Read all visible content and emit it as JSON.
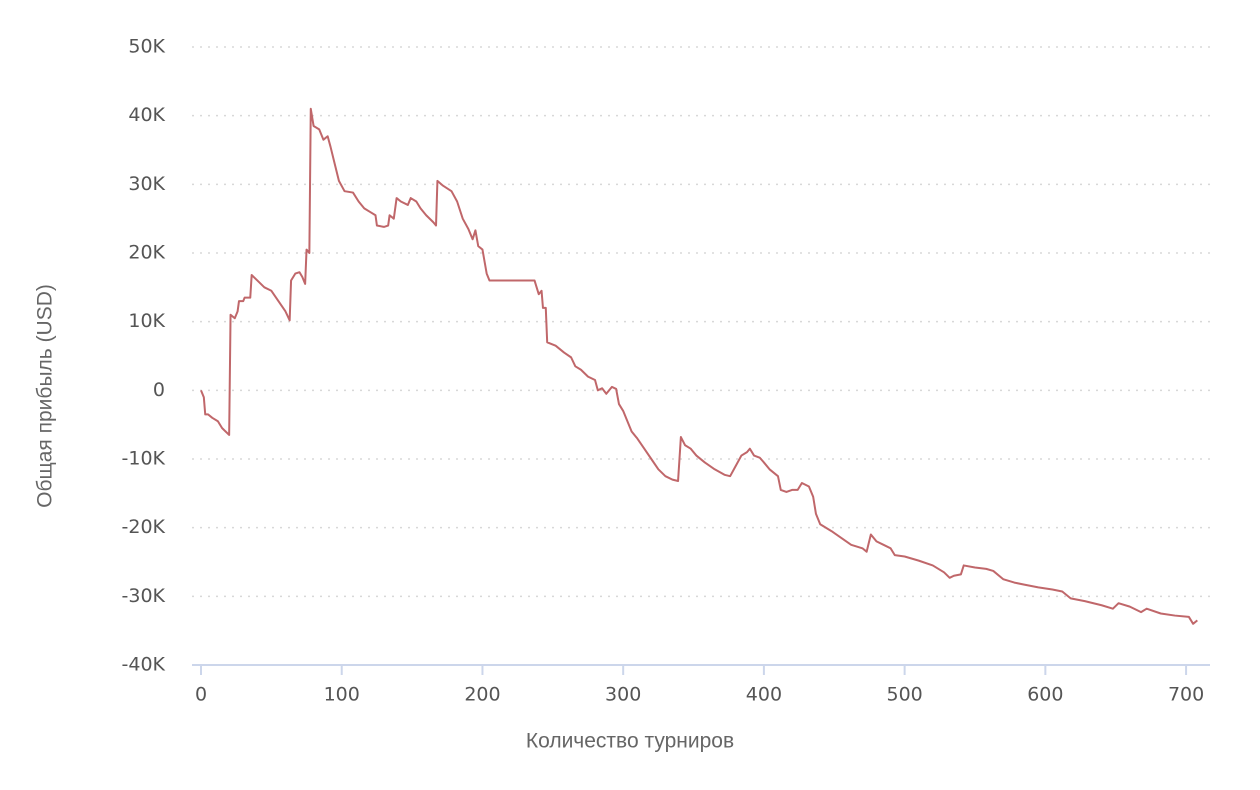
{
  "chart_data": {
    "type": "line",
    "xlabel": "Количество турниров",
    "ylabel": "Общая прибыль (USD)",
    "color": "#c0676a",
    "grid": true,
    "xlim": [
      -6.4,
      717
    ],
    "ylim": [
      -40000,
      50000
    ],
    "xticks": [
      0,
      100,
      200,
      300,
      400,
      500,
      600,
      700
    ],
    "yticks": [
      {
        "value": -40000,
        "label": "-40K"
      },
      {
        "value": -30000,
        "label": "-30K"
      },
      {
        "value": -20000,
        "label": "-20K"
      },
      {
        "value": -10000,
        "label": "-10K"
      },
      0,
      {
        "value": 10000,
        "label": "10K"
      },
      {
        "value": 20000,
        "label": "20K"
      },
      {
        "value": 30000,
        "label": "30K"
      },
      {
        "value": 40000,
        "label": "40K"
      },
      {
        "value": 50000,
        "label": "50K"
      }
    ],
    "x": [
      0,
      2,
      3,
      5,
      8,
      12,
      15,
      20,
      21,
      24,
      26,
      27,
      30,
      31,
      35,
      36,
      40,
      45,
      50,
      55,
      60,
      63,
      64,
      67,
      70,
      72,
      74,
      75,
      77,
      78,
      80,
      84,
      87,
      90,
      92,
      95,
      98,
      102,
      108,
      112,
      116,
      120,
      124,
      125,
      130,
      133,
      134,
      137,
      139,
      142,
      147,
      149,
      153,
      156,
      160,
      165,
      167,
      168,
      172,
      178,
      182,
      186,
      190,
      193,
      195,
      197,
      200,
      203,
      205,
      215,
      225,
      237,
      240,
      242,
      243,
      245,
      246,
      252,
      258,
      263,
      266,
      270,
      275,
      280,
      282,
      285,
      288,
      292,
      295,
      297,
      300,
      303,
      306,
      310,
      315,
      320,
      325,
      330,
      335,
      339,
      341,
      344,
      348,
      352,
      358,
      365,
      372,
      376,
      380,
      384,
      388,
      390,
      393,
      397,
      400,
      404,
      410,
      412,
      416,
      420,
      424,
      427,
      432,
      435,
      437,
      440,
      448,
      455,
      462,
      470,
      473,
      476,
      480,
      485,
      490,
      493,
      500,
      510,
      520,
      528,
      532,
      535,
      540,
      542,
      550,
      558,
      563,
      570,
      578,
      585,
      595,
      605,
      612,
      618,
      628,
      640,
      648,
      652,
      660,
      668,
      672,
      682,
      692,
      702,
      705,
      708
    ],
    "values": [
      0,
      -1000,
      -3500,
      -3500,
      -4000,
      -4500,
      -5500,
      -6500,
      11000,
      10500,
      11500,
      13000,
      13000,
      13500,
      13500,
      16800,
      16000,
      15000,
      14500,
      13000,
      11500,
      10200,
      16000,
      17000,
      17200,
      16500,
      15500,
      20500,
      20000,
      41000,
      38500,
      38000,
      36500,
      37000,
      35500,
      33000,
      30500,
      29000,
      28800,
      27500,
      26500,
      26000,
      25500,
      24000,
      23800,
      24000,
      25500,
      25000,
      28000,
      27500,
      27000,
      28000,
      27500,
      26500,
      25500,
      24500,
      24000,
      30500,
      29800,
      29000,
      27500,
      25000,
      23500,
      22000,
      23300,
      21000,
      20500,
      17000,
      16000,
      16000,
      16000,
      16000,
      14000,
      14500,
      12000,
      12000,
      7000,
      6500,
      5500,
      4800,
      3500,
      3000,
      2000,
      1500,
      0,
      300,
      -500,
      500,
      200,
      -2000,
      -3000,
      -4500,
      -6000,
      -7000,
      -8500,
      -10000,
      -11500,
      -12500,
      -13000,
      -13200,
      -6800,
      -8000,
      -8500,
      -9500,
      -10500,
      -11500,
      -12300,
      -12500,
      -11000,
      -9500,
      -9000,
      -8500,
      -9500,
      -9800,
      -10500,
      -11500,
      -12500,
      -14500,
      -14800,
      -14500,
      -14500,
      -13500,
      -14000,
      -15500,
      -18000,
      -19500,
      -20500,
      -21500,
      -22500,
      -23000,
      -23500,
      -21000,
      -22000,
      -22500,
      -23000,
      -24000,
      -24200,
      -24800,
      -25500,
      -26500,
      -27300,
      -27000,
      -26800,
      -25500,
      -25800,
      -26000,
      -26300,
      -27500,
      -28000,
      -28300,
      -28700,
      -29000,
      -29300,
      -30300,
      -30700,
      -31300,
      -31800,
      -31000,
      -31500,
      -32300,
      -31800,
      -32500,
      -32800,
      -33000,
      -34000,
      -33500
    ]
  }
}
